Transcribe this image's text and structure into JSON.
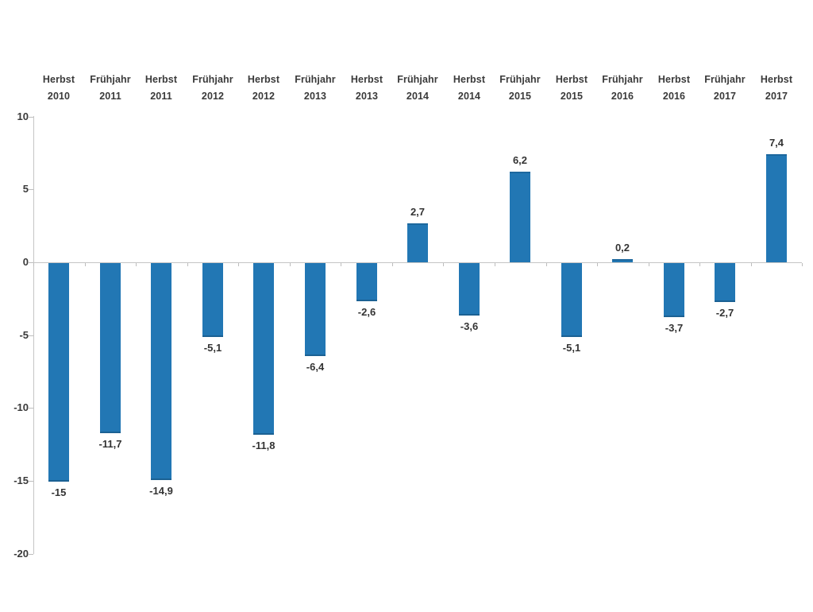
{
  "chart_data": {
    "type": "bar",
    "title": "",
    "xlabel": "",
    "ylabel": "",
    "legend": "none",
    "grid": "off",
    "categories": [
      {
        "season": "Herbst",
        "year": "2010"
      },
      {
        "season": "Frühjahr",
        "year": "2011"
      },
      {
        "season": "Herbst",
        "year": "2011"
      },
      {
        "season": "Frühjahr",
        "year": "2012"
      },
      {
        "season": "Herbst",
        "year": "2012"
      },
      {
        "season": "Frühjahr",
        "year": "2013"
      },
      {
        "season": "Herbst",
        "year": "2013"
      },
      {
        "season": "Frühjahr",
        "year": "2014"
      },
      {
        "season": "Herbst",
        "year": "2014"
      },
      {
        "season": "Frühjahr",
        "year": "2015"
      },
      {
        "season": "Herbst",
        "year": "2015"
      },
      {
        "season": "Frühjahr",
        "year": "2016"
      },
      {
        "season": "Herbst",
        "year": "2016"
      },
      {
        "season": "Frühjahr",
        "year": "2017"
      },
      {
        "season": "Herbst",
        "year": "2017"
      }
    ],
    "values": [
      -15,
      -11.7,
      -14.9,
      -5.1,
      -11.8,
      -6.4,
      -2.6,
      2.7,
      -3.6,
      6.2,
      -5.1,
      0.2,
      -3.7,
      -2.7,
      7.4
    ],
    "value_labels": [
      "-15",
      "-11,7",
      "-14,9",
      "-5,1",
      "-11,8",
      "-6,4",
      "-2,6",
      "2,7",
      "-3,6",
      "6,2",
      "-5,1",
      "0,2",
      "-3,7",
      "-2,7",
      "7,4"
    ],
    "y_axis": {
      "ticks": [
        10,
        5,
        0,
        -5,
        -10,
        -15,
        -20
      ],
      "tick_labels": [
        "10",
        "5",
        "0",
        "-5",
        "-10",
        "-15",
        "-20"
      ],
      "range": [
        -20,
        10
      ]
    },
    "colors": {
      "bar": "#2277b4",
      "axis": "#c5c5c5",
      "text": "#3a3a3a"
    }
  }
}
